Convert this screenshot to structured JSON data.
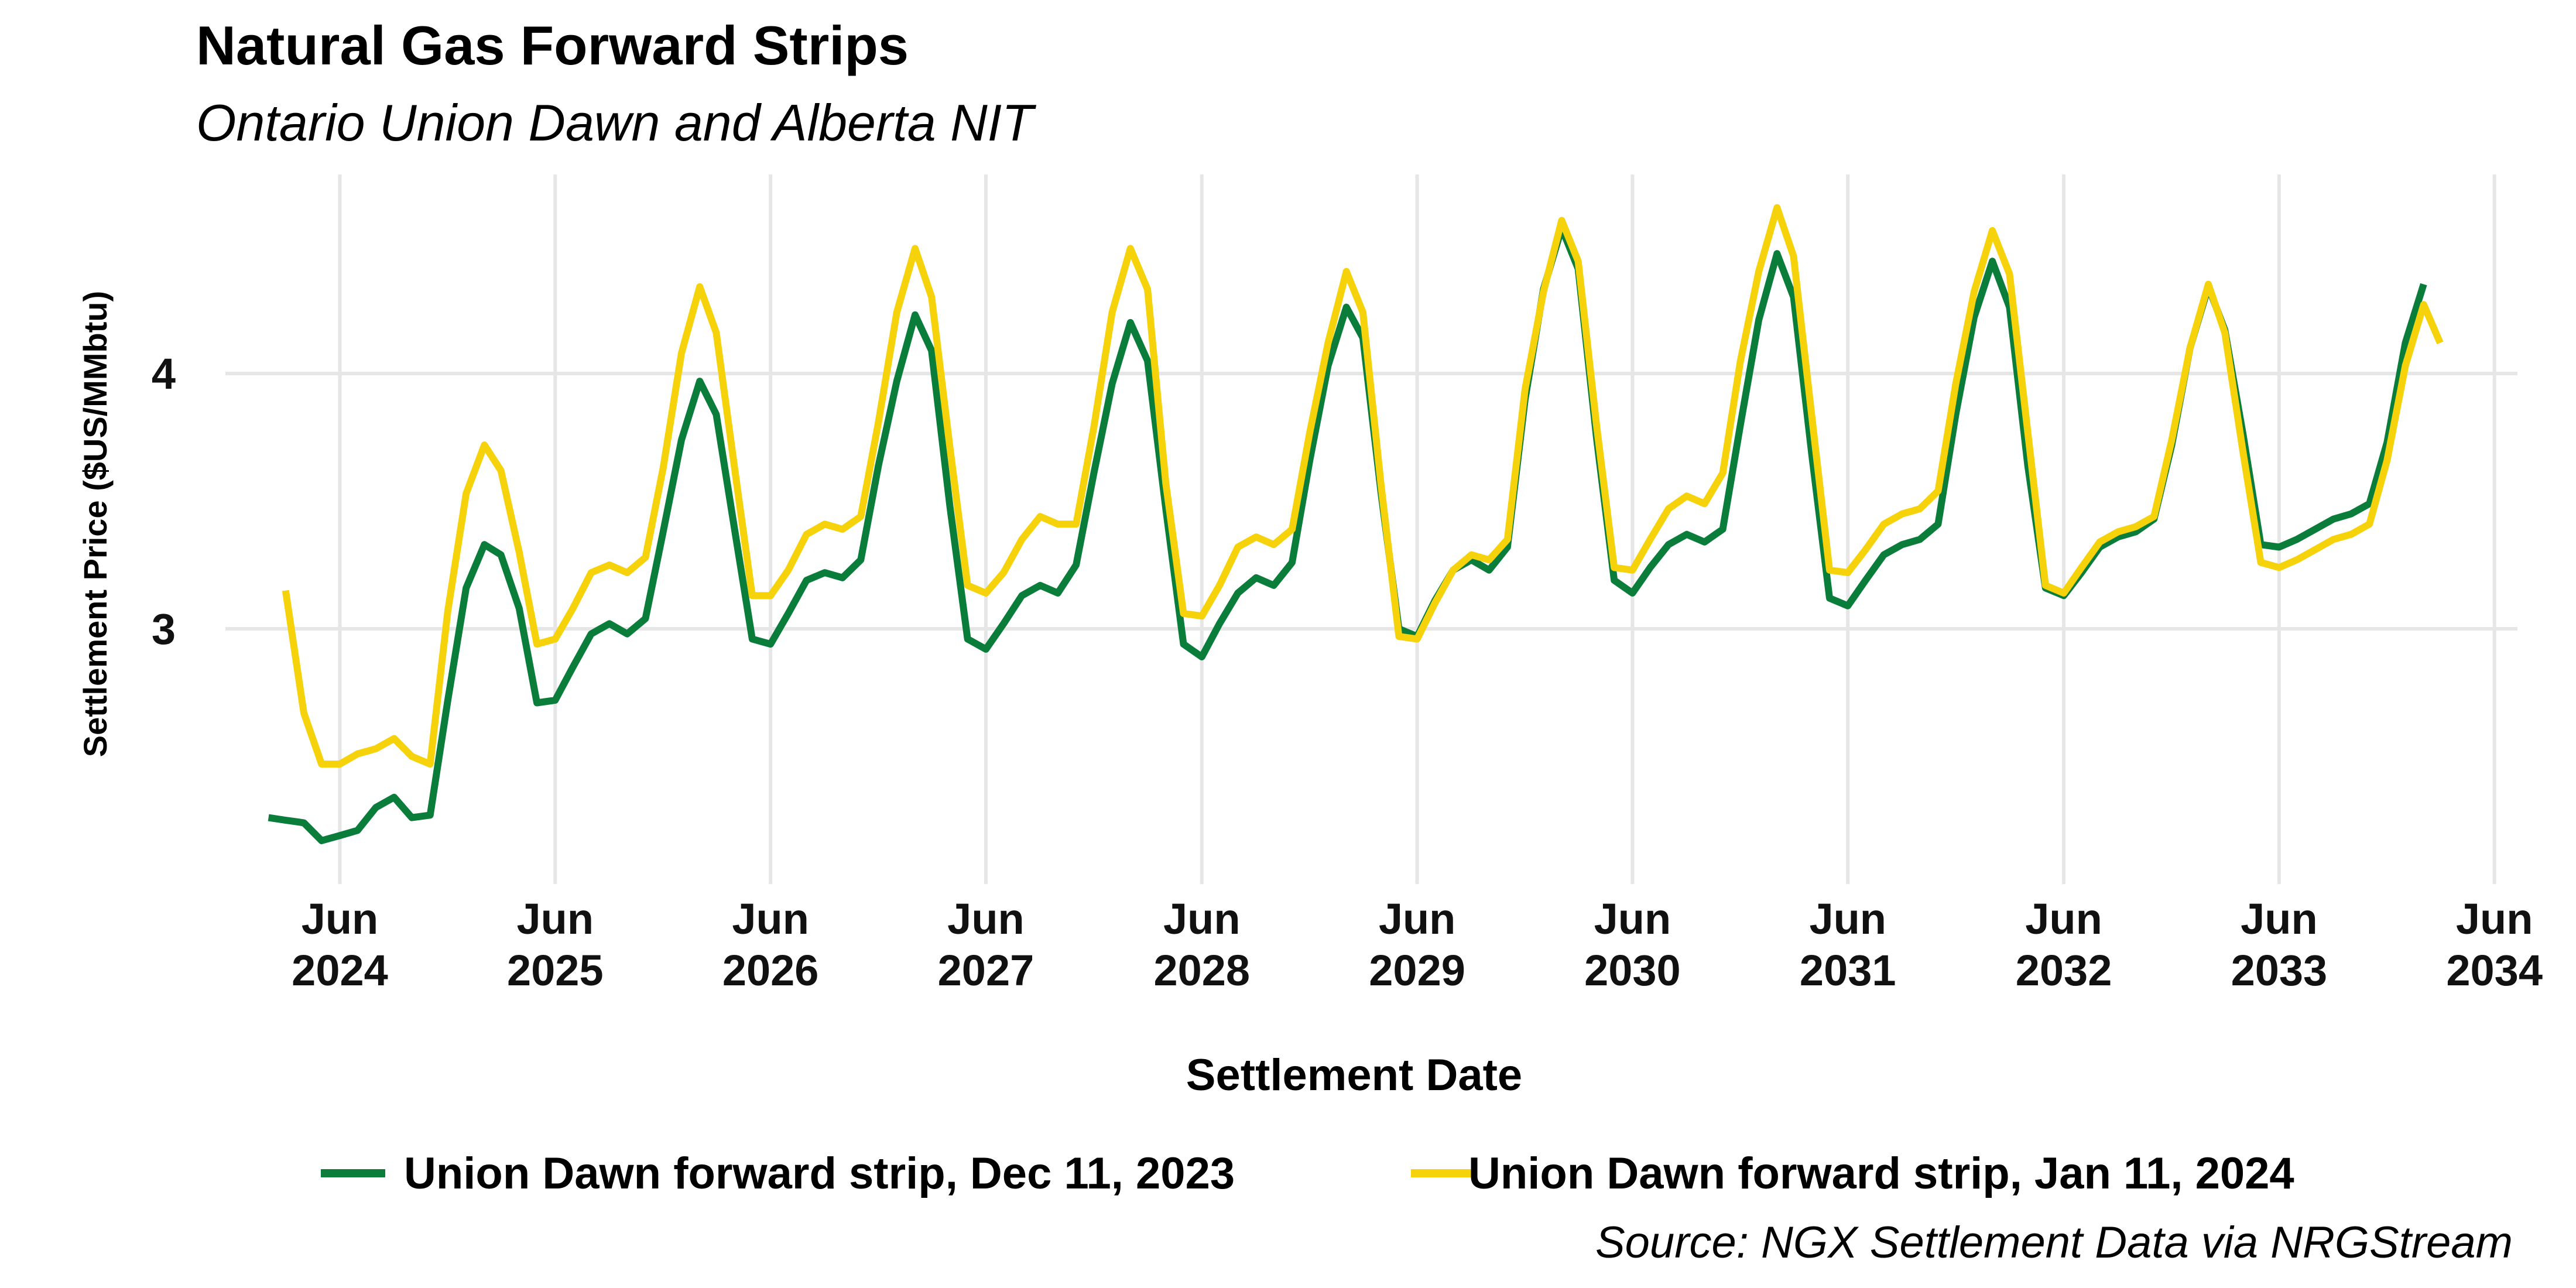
{
  "chart_data": {
    "type": "line",
    "title": "Natural Gas Forward Strips",
    "subtitle": "Ontario Union Dawn and Alberta NIT",
    "xlabel": "Settlement Date",
    "ylabel": "Settlement Price ($US/MMbtu)",
    "caption": "Source: NGX Settlement Data via NRGStream",
    "legend_position": "bottom",
    "grid": true,
    "x_start": "2024-02",
    "x_step": "month",
    "xlim": [
      "2023-11-20",
      "2034-07-10"
    ],
    "ylim": [
      2.0,
      4.78
    ],
    "y_ticks": [
      3,
      4
    ],
    "x_ticks": [
      {
        "date": "2024-06-01",
        "line1": "Jun",
        "line2": "2024"
      },
      {
        "date": "2025-06-01",
        "line1": "Jun",
        "line2": "2025"
      },
      {
        "date": "2026-06-01",
        "line1": "Jun",
        "line2": "2026"
      },
      {
        "date": "2027-06-01",
        "line1": "Jun",
        "line2": "2027"
      },
      {
        "date": "2028-06-01",
        "line1": "Jun",
        "line2": "2028"
      },
      {
        "date": "2029-06-01",
        "line1": "Jun",
        "line2": "2029"
      },
      {
        "date": "2030-06-01",
        "line1": "Jun",
        "line2": "2030"
      },
      {
        "date": "2031-06-01",
        "line1": "Jun",
        "line2": "2031"
      },
      {
        "date": "2032-06-01",
        "line1": "Jun",
        "line2": "2032"
      },
      {
        "date": "2033-06-01",
        "line1": "Jun",
        "line2": "2033"
      },
      {
        "date": "2034-06-01",
        "line1": "Jun",
        "line2": "2034"
      }
    ],
    "series": [
      {
        "name": "Union Dawn forward strip, Dec 11, 2023",
        "color": "#0a7d3b",
        "start": "2024-02",
        "values": [
          2.26,
          2.25,
          2.24,
          2.17,
          2.19,
          2.21,
          2.3,
          2.34,
          2.26,
          2.27,
          2.72,
          3.16,
          3.33,
          3.29,
          3.08,
          2.71,
          2.72,
          2.85,
          2.98,
          3.02,
          2.98,
          3.04,
          3.38,
          3.74,
          3.97,
          3.84,
          3.39,
          2.96,
          2.94,
          3.06,
          3.19,
          3.22,
          3.2,
          3.27,
          3.64,
          3.97,
          4.23,
          4.09,
          3.48,
          2.96,
          2.92,
          3.02,
          3.13,
          3.17,
          3.14,
          3.25,
          3.61,
          3.96,
          4.2,
          4.05,
          3.47,
          2.94,
          2.89,
          3.02,
          3.14,
          3.2,
          3.17,
          3.26,
          3.66,
          4.03,
          4.26,
          4.14,
          3.53,
          3.0,
          2.97,
          3.11,
          3.23,
          3.27,
          3.23,
          3.32,
          3.9,
          4.33,
          4.57,
          4.41,
          3.75,
          3.19,
          3.14,
          3.24,
          3.33,
          3.37,
          3.34,
          3.39,
          3.8,
          4.21,
          4.47,
          4.3,
          3.68,
          3.12,
          3.09,
          3.19,
          3.29,
          3.33,
          3.35,
          3.41,
          3.84,
          4.22,
          4.44,
          4.26,
          3.64,
          3.16,
          3.13,
          3.22,
          3.32,
          3.36,
          3.38,
          3.43,
          3.72,
          4.1,
          4.34,
          4.17,
          3.76,
          3.33,
          3.32,
          3.35,
          3.39,
          3.43,
          3.45,
          3.49,
          3.73,
          4.12,
          4.35
        ]
      },
      {
        "name": "Union Dawn forward strip, Jan 11, 2024",
        "color": "#f5d20a",
        "start": "2024-03",
        "values": [
          3.15,
          2.67,
          2.47,
          2.47,
          2.51,
          2.53,
          2.57,
          2.5,
          2.47,
          3.07,
          3.53,
          3.72,
          3.62,
          3.3,
          2.94,
          2.96,
          3.08,
          3.22,
          3.25,
          3.22,
          3.28,
          3.63,
          4.08,
          4.34,
          4.16,
          3.63,
          3.13,
          3.13,
          3.23,
          3.37,
          3.41,
          3.39,
          3.44,
          3.81,
          4.24,
          4.49,
          4.3,
          3.71,
          3.17,
          3.14,
          3.22,
          3.35,
          3.44,
          3.41,
          3.41,
          3.79,
          4.24,
          4.49,
          4.33,
          3.57,
          3.06,
          3.05,
          3.17,
          3.32,
          3.36,
          3.33,
          3.39,
          3.77,
          4.12,
          4.4,
          4.24,
          3.56,
          2.97,
          2.96,
          3.1,
          3.23,
          3.29,
          3.27,
          3.35,
          3.94,
          4.32,
          4.6,
          4.44,
          3.8,
          3.24,
          3.23,
          3.35,
          3.47,
          3.52,
          3.49,
          3.61,
          4.05,
          4.4,
          4.65,
          4.46,
          3.83,
          3.23,
          3.22,
          3.31,
          3.41,
          3.45,
          3.47,
          3.54,
          3.96,
          4.32,
          4.56,
          4.39,
          3.77,
          3.17,
          3.14,
          3.24,
          3.34,
          3.38,
          3.4,
          3.44,
          3.74,
          4.1,
          4.35,
          4.16,
          3.69,
          3.26,
          3.24,
          3.27,
          3.31,
          3.35,
          3.37,
          3.41,
          3.66,
          4.03,
          4.27,
          4.12
        ]
      }
    ]
  }
}
